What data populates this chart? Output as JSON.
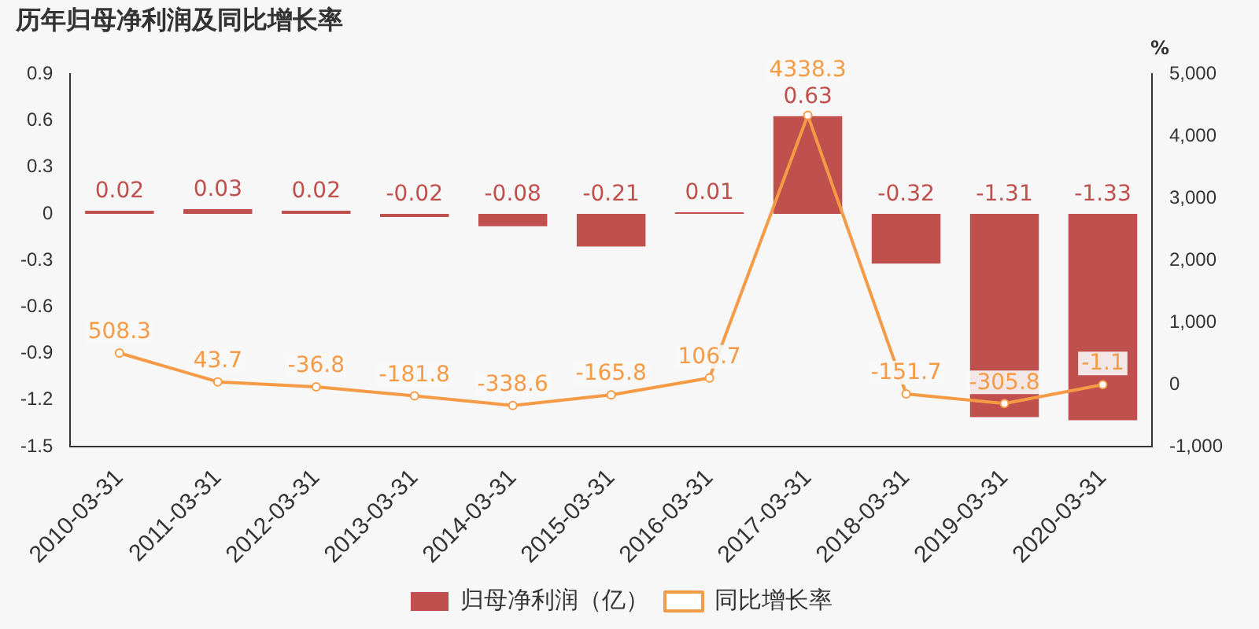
{
  "chart_data": {
    "type": "bar",
    "title": "历年归母净利润及同比增长率",
    "y2label": "%",
    "categories": [
      "2010-03-31",
      "2011-03-31",
      "2012-03-31",
      "2013-03-31",
      "2014-03-31",
      "2015-03-31",
      "2016-03-31",
      "2017-03-31",
      "2018-03-31",
      "2019-03-31",
      "2020-03-31"
    ],
    "series": [
      {
        "name": "归母净利润（亿）",
        "color": "#c0504d",
        "values": [
          0.02,
          0.03,
          0.02,
          -0.02,
          -0.08,
          -0.21,
          0.01,
          0.63,
          -0.32,
          -1.31,
          -1.33
        ]
      },
      {
        "name": "同比增长率",
        "type": "line",
        "axis": "y2",
        "color": "#f59a45",
        "marker": "circle",
        "values": [
          508.3,
          43.7,
          -36.8,
          -181.8,
          -338.6,
          -165.8,
          106.7,
          4338.3,
          -151.7,
          -305.8,
          -1.1
        ]
      }
    ],
    "ylim": [
      -1.5,
      0.9
    ],
    "yticks": [
      -1.5,
      -1.2,
      -0.9,
      -0.6,
      -0.3,
      0,
      0.3,
      0.6,
      0.9
    ],
    "y2lim": [
      -1000,
      5000
    ],
    "y2ticks": [
      {
        "value": -1000,
        "label": "-1,000"
      },
      0,
      {
        "value": 1000,
        "label": "1,000"
      },
      {
        "value": 2000,
        "label": "2,000"
      },
      {
        "value": 3000,
        "label": "3,000"
      },
      {
        "value": 4000,
        "label": "4,000"
      },
      {
        "value": 5000,
        "label": "5,000"
      }
    ],
    "grid": false,
    "legend": "bottom",
    "data_labels": true
  }
}
